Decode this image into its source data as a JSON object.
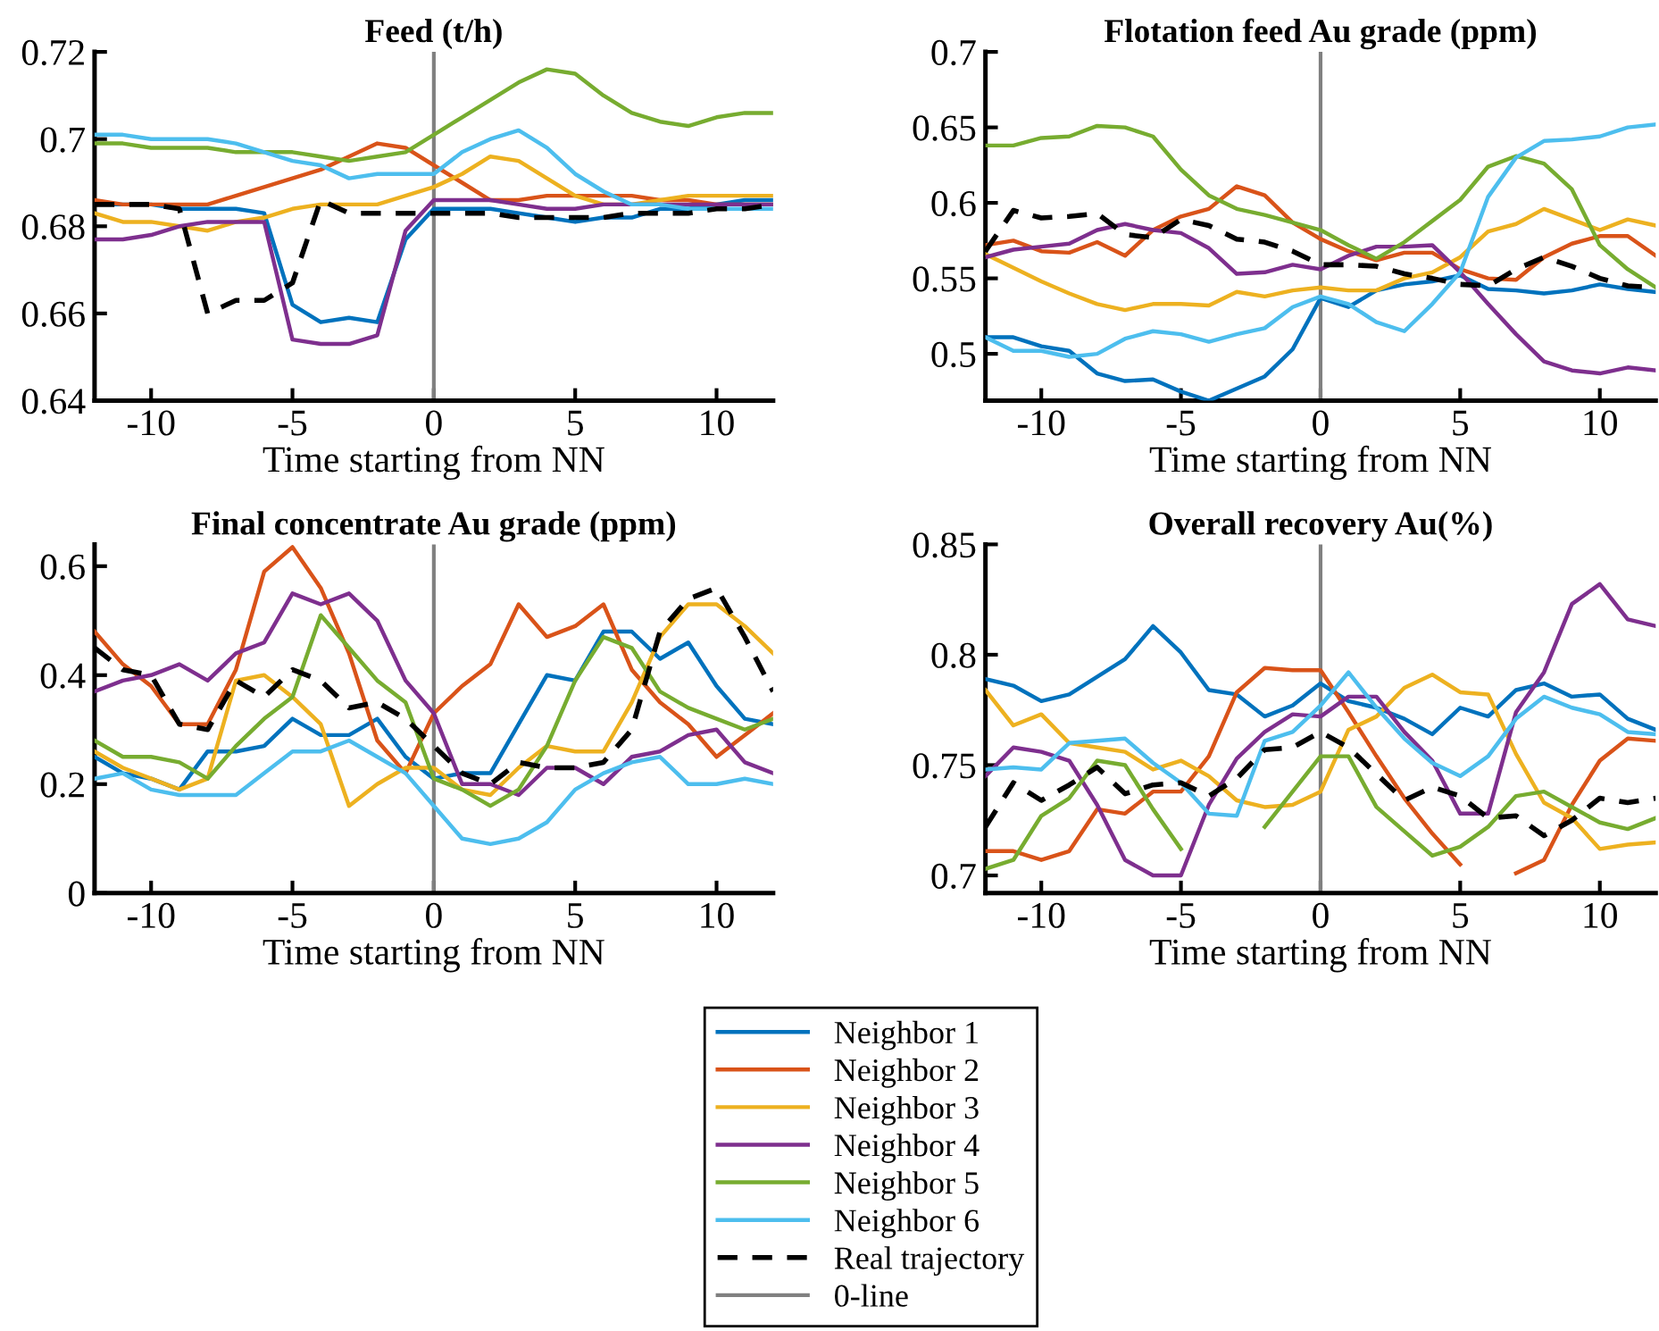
{
  "chart_data": [
    {
      "type": "line",
      "title": "Feed (t/h)",
      "xlabel": "Time starting from NN",
      "x": [
        -12,
        -11,
        -10,
        -9,
        -8,
        -7,
        -6,
        -5,
        -4,
        -3,
        -2,
        -1,
        0,
        1,
        2,
        3,
        4,
        5,
        6,
        7,
        8,
        9,
        10,
        11,
        12
      ],
      "xlim": [
        -12,
        12
      ],
      "xticks": [
        -10,
        -5,
        0,
        5,
        10
      ],
      "ylim": [
        0.64,
        0.72
      ],
      "yticks": [
        0.64,
        0.66,
        0.68,
        0.7,
        0.72
      ],
      "grid": false,
      "legend": "bottom",
      "ref_lines": [
        {
          "axis": "x",
          "value": 0,
          "label": "0-line",
          "color": "#808080"
        }
      ],
      "series": [
        {
          "name": "Neighbor 1",
          "color": "#0072bd",
          "values": [
            0.685,
            0.685,
            0.685,
            0.684,
            0.684,
            0.684,
            0.683,
            0.662,
            0.658,
            0.659,
            0.658,
            0.677,
            0.684,
            0.684,
            0.684,
            0.683,
            0.682,
            0.681,
            0.682,
            0.682,
            0.684,
            0.684,
            0.685,
            0.686,
            0.686
          ]
        },
        {
          "name": "Neighbor 2",
          "color": "#d95319",
          "values": [
            0.686,
            0.685,
            0.685,
            0.685,
            0.685,
            0.687,
            0.689,
            0.691,
            0.693,
            0.696,
            0.699,
            0.698,
            0.694,
            0.69,
            0.686,
            0.686,
            0.687,
            0.687,
            0.687,
            0.687,
            0.686,
            0.686,
            0.685,
            0.685,
            0.685
          ]
        },
        {
          "name": "Neighbor 3",
          "color": "#edb120",
          "values": [
            0.683,
            0.681,
            0.681,
            0.68,
            0.679,
            0.681,
            0.682,
            0.684,
            0.685,
            0.685,
            0.685,
            0.687,
            0.689,
            0.692,
            0.696,
            0.695,
            0.691,
            0.687,
            0.685,
            0.685,
            0.686,
            0.687,
            0.687,
            0.687,
            0.687
          ]
        },
        {
          "name": "Neighbor 4",
          "color": "#7e2f8e",
          "values": [
            0.677,
            0.677,
            0.678,
            0.68,
            0.681,
            0.681,
            0.681,
            0.654,
            0.653,
            0.653,
            0.655,
            0.679,
            0.686,
            0.686,
            0.686,
            0.685,
            0.684,
            0.684,
            0.685,
            0.685,
            0.685,
            0.685,
            0.685,
            0.685,
            0.685
          ]
        },
        {
          "name": "Neighbor 5",
          "color": "#77ac30",
          "values": [
            0.699,
            0.699,
            0.698,
            0.698,
            0.698,
            0.697,
            0.697,
            0.697,
            0.696,
            0.695,
            0.696,
            0.697,
            0.701,
            0.705,
            0.709,
            0.713,
            0.716,
            0.715,
            0.71,
            0.706,
            0.704,
            0.703,
            0.705,
            0.706,
            0.706
          ]
        },
        {
          "name": "Neighbor 6",
          "color": "#4dbeee",
          "values": [
            0.701,
            0.701,
            0.7,
            0.7,
            0.7,
            0.699,
            0.697,
            0.695,
            0.694,
            0.691,
            0.692,
            0.692,
            0.692,
            0.697,
            0.7,
            0.702,
            0.698,
            0.692,
            0.688,
            0.685,
            0.685,
            0.684,
            0.684,
            0.684,
            0.684
          ]
        },
        {
          "name": "Real trajectory",
          "color": "#000000",
          "line_style": "dashed",
          "values": [
            0.685,
            0.685,
            0.685,
            0.684,
            0.66,
            0.663,
            0.663,
            0.667,
            0.686,
            0.683,
            0.683,
            0.683,
            0.683,
            0.683,
            0.683,
            0.682,
            0.682,
            0.682,
            0.682,
            0.683,
            0.683,
            0.683,
            0.684,
            0.684,
            0.685
          ]
        }
      ]
    },
    {
      "type": "line",
      "title": "Flotation feed Au grade (ppm)",
      "xlabel": "Time starting from NN",
      "x": [
        -12,
        -11,
        -10,
        -9,
        -8,
        -7,
        -6,
        -5,
        -4,
        -3,
        -2,
        -1,
        0,
        1,
        2,
        3,
        4,
        5,
        6,
        7,
        8,
        9,
        10,
        11,
        12
      ],
      "xlim": [
        -12,
        12
      ],
      "xticks": [
        -10,
        -5,
        0,
        5,
        10
      ],
      "ylim": [
        0.469,
        0.7
      ],
      "yticks": [
        0.5,
        0.55,
        0.6,
        0.65,
        0.7
      ],
      "grid": false,
      "ref_lines": [
        {
          "axis": "x",
          "value": 0,
          "color": "#808080"
        }
      ],
      "series": [
        {
          "color": "#0072bd",
          "values": [
            0.511,
            0.511,
            0.505,
            0.502,
            0.487,
            0.482,
            0.483,
            0.475,
            0.469,
            0.477,
            0.485,
            0.503,
            0.537,
            0.531,
            0.542,
            0.546,
            0.548,
            0.552,
            0.543,
            0.542,
            0.54,
            0.542,
            0.546,
            0.543,
            0.541
          ]
        },
        {
          "color": "#d95319",
          "values": [
            0.572,
            0.575,
            0.568,
            0.567,
            0.574,
            0.565,
            0.582,
            0.591,
            0.596,
            0.611,
            0.605,
            0.587,
            0.576,
            0.568,
            0.562,
            0.567,
            0.567,
            0.556,
            0.55,
            0.549,
            0.564,
            0.573,
            0.578,
            0.578,
            0.565
          ]
        },
        {
          "color": "#edb120",
          "values": [
            0.566,
            0.557,
            0.548,
            0.54,
            0.533,
            0.529,
            0.533,
            0.533,
            0.532,
            0.541,
            0.538,
            0.542,
            0.544,
            0.542,
            0.542,
            0.55,
            0.554,
            0.564,
            0.581,
            0.586,
            0.596,
            0.589,
            0.582,
            0.589,
            0.585
          ]
        },
        {
          "color": "#7e2f8e",
          "values": [
            0.564,
            0.569,
            0.571,
            0.573,
            0.582,
            0.586,
            0.582,
            0.58,
            0.57,
            0.553,
            0.554,
            0.559,
            0.556,
            0.565,
            0.571,
            0.571,
            0.572,
            0.554,
            0.533,
            0.513,
            0.495,
            0.489,
            0.487,
            0.491,
            0.489
          ]
        },
        {
          "color": "#77ac30",
          "values": [
            0.638,
            0.638,
            0.643,
            0.644,
            0.651,
            0.65,
            0.644,
            0.622,
            0.605,
            0.596,
            0.592,
            0.587,
            0.582,
            0.572,
            0.563,
            0.574,
            0.588,
            0.602,
            0.624,
            0.631,
            0.626,
            0.609,
            0.572,
            0.556,
            0.544
          ]
        },
        {
          "color": "#4dbeee",
          "values": [
            0.511,
            0.502,
            0.502,
            0.498,
            0.5,
            0.51,
            0.515,
            0.513,
            0.508,
            0.513,
            0.517,
            0.531,
            0.538,
            0.533,
            0.521,
            0.515,
            0.533,
            0.554,
            0.604,
            0.63,
            0.641,
            0.642,
            0.644,
            0.65,
            0.652
          ]
        },
        {
          "color": "#000000",
          "line_style": "dashed",
          "values": [
            0.568,
            0.595,
            0.59,
            0.591,
            0.593,
            0.579,
            0.577,
            0.589,
            0.585,
            0.576,
            0.574,
            0.568,
            0.559,
            0.559,
            0.558,
            0.553,
            0.55,
            0.546,
            0.545,
            0.556,
            0.564,
            0.558,
            0.55,
            0.545,
            0.544
          ]
        }
      ]
    },
    {
      "type": "line",
      "title": "Final concentrate Au grade (ppm)",
      "xlabel": "Time starting from NN",
      "x": [
        -12,
        -11,
        -10,
        -9,
        -8,
        -7,
        -6,
        -5,
        -4,
        -3,
        -2,
        -1,
        0,
        1,
        2,
        3,
        4,
        5,
        6,
        7,
        8,
        9,
        10,
        11,
        12
      ],
      "xlim": [
        -12,
        12
      ],
      "xticks": [
        -10,
        -5,
        0,
        5,
        10
      ],
      "ylim": [
        0,
        0.64
      ],
      "yticks": [
        0,
        0.2,
        0.4,
        0.6
      ],
      "grid": false,
      "ref_lines": [
        {
          "axis": "x",
          "value": 0,
          "color": "#808080"
        }
      ],
      "series": [
        {
          "color": "#0072bd",
          "values": [
            0.25,
            0.22,
            0.21,
            0.19,
            0.26,
            0.26,
            0.27,
            0.32,
            0.29,
            0.29,
            0.32,
            0.25,
            0.21,
            0.22,
            0.22,
            0.31,
            0.4,
            0.39,
            0.48,
            0.48,
            0.43,
            0.46,
            0.38,
            0.32,
            0.31
          ]
        },
        {
          "color": "#d95319",
          "values": [
            0.48,
            0.42,
            0.38,
            0.31,
            0.31,
            0.41,
            0.59,
            0.635,
            0.56,
            0.44,
            0.28,
            0.22,
            0.33,
            0.38,
            0.42,
            0.53,
            0.47,
            0.49,
            0.53,
            0.41,
            0.35,
            0.31,
            0.25,
            0.29,
            0.33
          ]
        },
        {
          "color": "#edb120",
          "values": [
            0.26,
            0.23,
            0.21,
            0.19,
            0.21,
            0.39,
            0.4,
            0.36,
            0.31,
            0.16,
            0.2,
            0.23,
            0.23,
            0.19,
            0.18,
            0.23,
            0.27,
            0.26,
            0.26,
            0.35,
            0.47,
            0.53,
            0.53,
            0.49,
            0.44
          ]
        },
        {
          "color": "#7e2f8e",
          "values": [
            0.37,
            0.39,
            0.4,
            0.42,
            0.39,
            0.44,
            0.46,
            0.55,
            0.53,
            0.55,
            0.5,
            0.39,
            0.33,
            0.2,
            0.2,
            0.18,
            0.23,
            0.23,
            0.2,
            0.25,
            0.26,
            0.29,
            0.3,
            0.24,
            0.22
          ]
        },
        {
          "color": "#77ac30",
          "values": [
            0.28,
            0.25,
            0.25,
            0.24,
            0.21,
            0.27,
            0.32,
            0.36,
            0.51,
            0.45,
            0.39,
            0.35,
            0.21,
            0.19,
            0.16,
            0.19,
            0.27,
            0.39,
            0.47,
            0.45,
            0.37,
            0.34,
            0.32,
            0.3,
            0.32
          ]
        },
        {
          "color": "#4dbeee",
          "values": [
            0.21,
            0.22,
            0.19,
            0.18,
            0.18,
            0.18,
            0.22,
            0.26,
            0.26,
            0.28,
            0.25,
            0.22,
            0.16,
            0.1,
            0.09,
            0.1,
            0.13,
            0.19,
            0.22,
            0.24,
            0.25,
            0.2,
            0.2,
            0.21,
            0.2
          ]
        },
        {
          "color": "#000000",
          "line_style": "dashed",
          "values": [
            0.45,
            0.41,
            0.4,
            0.31,
            0.3,
            0.39,
            0.36,
            0.41,
            0.39,
            0.34,
            0.35,
            0.32,
            0.27,
            0.22,
            0.2,
            0.24,
            0.23,
            0.23,
            0.24,
            0.3,
            0.48,
            0.54,
            0.56,
            0.47,
            0.37
          ]
        }
      ]
    },
    {
      "type": "line",
      "title": "Overall recovery Au(%)",
      "xlabel": "Time starting from NN",
      "x": [
        -12,
        -11,
        -10,
        -9,
        -8,
        -7,
        -6,
        -5,
        -4,
        -3,
        -2,
        -1,
        0,
        1,
        2,
        3,
        4,
        5,
        6,
        7,
        8,
        9,
        10,
        11,
        12
      ],
      "xlim": [
        -12,
        12
      ],
      "xticks": [
        -10,
        -5,
        0,
        5,
        10
      ],
      "ylim": [
        0.692,
        0.85
      ],
      "yticks": [
        0.7,
        0.75,
        0.8,
        0.85
      ],
      "grid": false,
      "ref_lines": [
        {
          "axis": "x",
          "value": 0,
          "color": "#808080"
        }
      ],
      "series": [
        {
          "color": "#0072bd",
          "values": [
            0.789,
            0.786,
            0.779,
            0.782,
            0.79,
            0.798,
            0.813,
            0.801,
            0.784,
            0.782,
            0.772,
            0.777,
            0.787,
            0.779,
            0.776,
            0.771,
            0.764,
            0.776,
            0.772,
            0.784,
            0.787,
            0.781,
            0.782,
            0.771,
            0.766
          ]
        },
        {
          "color": "#d95319",
          "values": [
            0.711,
            0.711,
            0.707,
            0.711,
            0.73,
            0.728,
            0.738,
            0.738,
            0.754,
            0.783,
            0.794,
            0.793,
            0.793,
            0.774,
            0.754,
            0.735,
            0.719,
            0.705,
            null,
            0.701,
            0.707,
            0.732,
            0.752,
            0.762,
            0.761
          ]
        },
        {
          "color": "#edb120",
          "values": [
            0.784,
            0.768,
            0.773,
            0.76,
            0.758,
            0.756,
            0.748,
            0.752,
            0.745,
            0.734,
            0.731,
            0.732,
            0.738,
            0.766,
            0.772,
            0.785,
            0.791,
            0.783,
            0.782,
            0.755,
            0.733,
            0.726,
            0.712,
            0.714,
            0.715
          ]
        },
        {
          "color": "#7e2f8e",
          "values": [
            0.745,
            0.758,
            0.756,
            0.752,
            0.732,
            0.707,
            0.7,
            0.7,
            0.732,
            0.753,
            0.765,
            0.773,
            0.772,
            0.781,
            0.781,
            0.765,
            0.752,
            0.728,
            0.728,
            0.774,
            0.792,
            0.823,
            0.832,
            0.816,
            0.813
          ]
        },
        {
          "color": "#77ac30",
          "values": [
            0.703,
            0.707,
            0.727,
            0.735,
            0.752,
            0.75,
            0.73,
            0.712,
            null,
            null,
            0.722,
            0.738,
            0.754,
            0.754,
            0.731,
            0.72,
            0.709,
            0.713,
            0.722,
            0.736,
            0.738,
            0.731,
            0.724,
            0.721,
            0.726
          ]
        },
        {
          "color": "#4dbeee",
          "values": [
            0.748,
            0.749,
            0.748,
            0.76,
            0.761,
            0.762,
            0.751,
            0.742,
            0.728,
            0.727,
            0.761,
            0.765,
            0.777,
            0.792,
            0.776,
            0.762,
            0.751,
            0.745,
            0.754,
            0.771,
            0.781,
            0.776,
            0.773,
            0.765,
            0.764
          ]
        },
        {
          "color": "#000000",
          "line_style": "dashed",
          "values": [
            0.722,
            0.742,
            0.734,
            0.741,
            0.749,
            0.737,
            0.741,
            0.742,
            0.736,
            0.744,
            0.757,
            0.758,
            0.765,
            0.758,
            0.746,
            0.734,
            0.74,
            0.736,
            0.726,
            0.727,
            0.718,
            0.725,
            0.735,
            0.733,
            0.735
          ]
        }
      ]
    }
  ]
}
